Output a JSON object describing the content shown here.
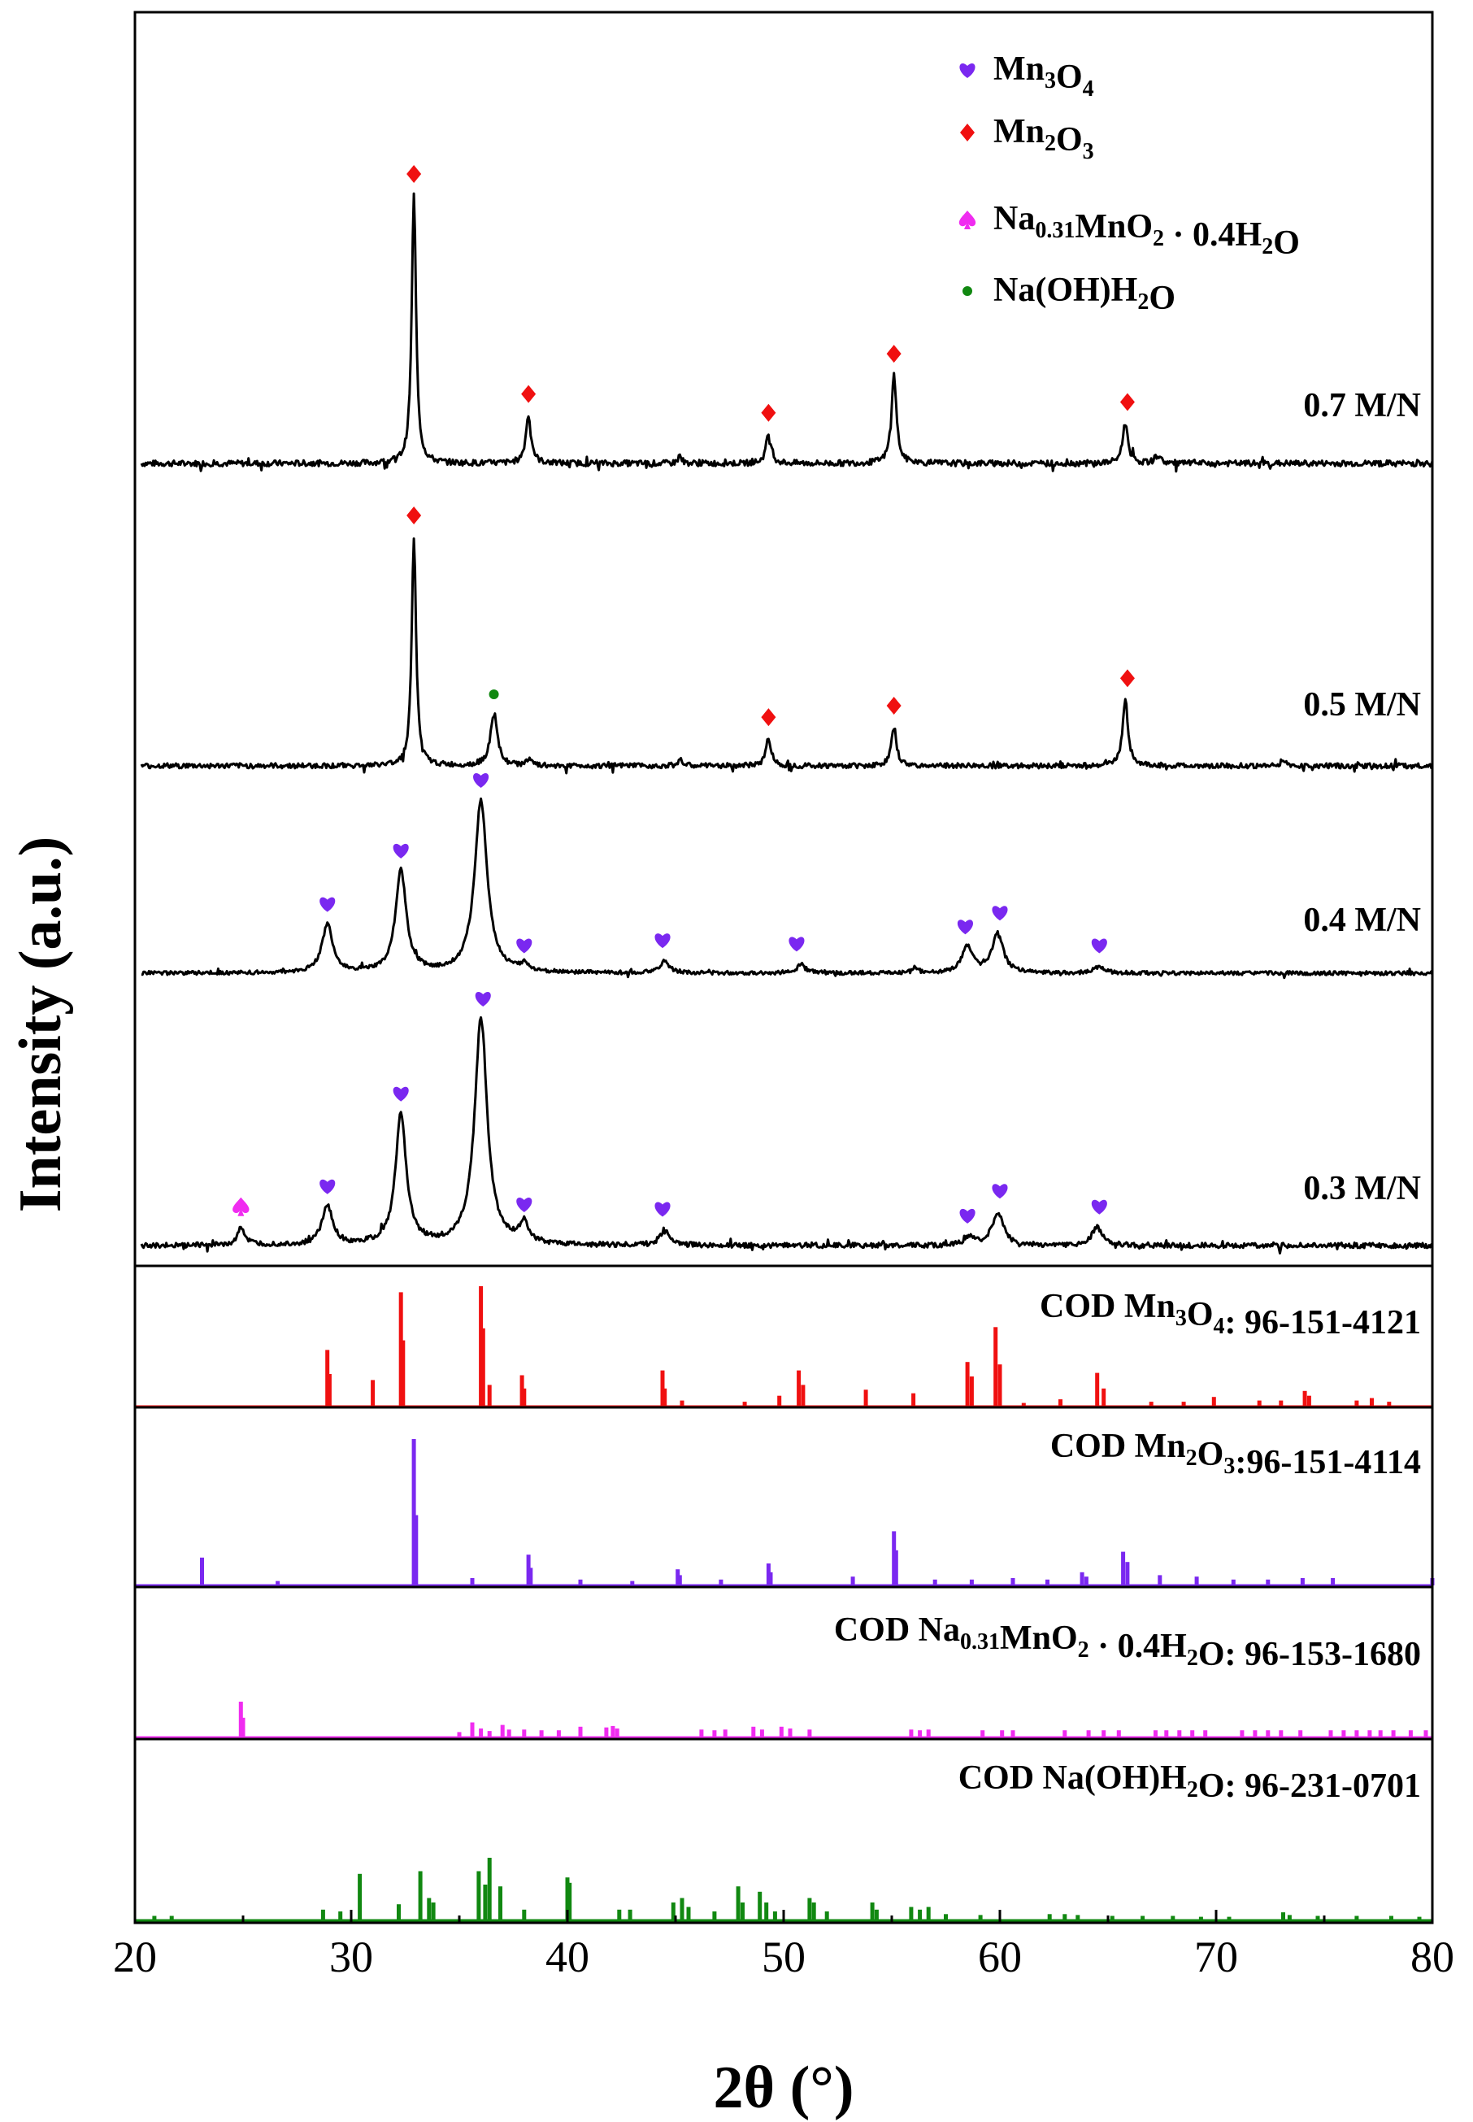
{
  "chart_data": {
    "type": "line",
    "xlabel": "2θ (°)",
    "ylabel": "Intensity (a.u.)",
    "xlim": [
      20,
      80
    ],
    "xticks": [
      20,
      30,
      40,
      50,
      60,
      70,
      80
    ],
    "legend": {
      "position": "top-right",
      "entries": [
        {
          "key": "mn3o4",
          "name": "Mn3O4",
          "marker": "heart",
          "color": "#7A28F0"
        },
        {
          "key": "mn2o3",
          "name": "Mn2O3",
          "marker": "diamond",
          "color": "#F01010"
        },
        {
          "key": "namno2",
          "name": "Na0.31MnO2 · 0.4H2O",
          "marker": "spade",
          "color": "#F02CF0"
        },
        {
          "key": "naoh",
          "name": "Na(OH)H2O",
          "marker": "dot",
          "color": "#118811"
        }
      ]
    },
    "samples": [
      {
        "label": "0.7 M/N",
        "color": "#000000",
        "peak_height": 330,
        "peaks": [
          [
            32.9,
            1.0,
            0.12
          ],
          [
            38.2,
            0.18,
            0.15
          ],
          [
            45.2,
            0.03,
            0.1
          ],
          [
            49.3,
            0.11,
            0.14
          ],
          [
            55.1,
            0.33,
            0.14
          ],
          [
            65.8,
            0.15,
            0.15
          ],
          [
            67.3,
            0.03,
            0.15
          ]
        ],
        "markers": [
          [
            "mn2o3",
            32.9
          ],
          [
            "mn2o3",
            38.2
          ],
          [
            "mn2o3",
            49.3
          ],
          [
            "mn2o3",
            55.1
          ],
          [
            "mn2o3",
            65.9
          ]
        ]
      },
      {
        "label": "0.5 M/N",
        "color": "#000000",
        "peak_height": 282,
        "peaks": [
          [
            32.9,
            1.0,
            0.12
          ],
          [
            36.6,
            0.22,
            0.2
          ],
          [
            38.2,
            0.03,
            0.12
          ],
          [
            45.2,
            0.03,
            0.12
          ],
          [
            49.3,
            0.12,
            0.15
          ],
          [
            55.1,
            0.17,
            0.14
          ],
          [
            65.8,
            0.29,
            0.15
          ],
          [
            73.1,
            0.03,
            0.12
          ]
        ],
        "markers": [
          [
            "mn2o3",
            32.9
          ],
          [
            "naoh",
            36.6
          ],
          [
            "mn2o3",
            49.3
          ],
          [
            "mn2o3",
            55.1
          ],
          [
            "mn2o3",
            65.9
          ]
        ]
      },
      {
        "label": "0.4 M/N",
        "color": "#000000",
        "peak_height": 212,
        "peaks": [
          [
            28.9,
            0.28,
            0.3
          ],
          [
            32.3,
            0.59,
            0.3
          ],
          [
            36.0,
            1.0,
            0.35
          ],
          [
            38.0,
            0.04,
            0.2
          ],
          [
            44.5,
            0.07,
            0.25
          ],
          [
            50.8,
            0.05,
            0.25
          ],
          [
            56.1,
            0.02,
            0.2
          ],
          [
            58.5,
            0.15,
            0.3
          ],
          [
            59.9,
            0.23,
            0.3
          ],
          [
            64.6,
            0.04,
            0.25
          ]
        ],
        "markers": [
          [
            "mn3o4",
            28.9
          ],
          [
            "mn3o4",
            32.3
          ],
          [
            "mn3o4",
            36.0
          ],
          [
            "mn3o4",
            38.0
          ],
          [
            "mn3o4",
            44.4
          ],
          [
            "mn3o4",
            50.6
          ],
          [
            "mn3o4",
            58.4
          ],
          [
            "mn3o4",
            60.0
          ],
          [
            "mn3o4",
            64.6
          ]
        ]
      },
      {
        "label": "0.3 M/N",
        "color": "#000000",
        "peak_height": 278,
        "peaks": [
          [
            24.9,
            0.08,
            0.2
          ],
          [
            28.9,
            0.17,
            0.3
          ],
          [
            32.3,
            0.58,
            0.3
          ],
          [
            36.0,
            1.0,
            0.35
          ],
          [
            38.0,
            0.09,
            0.25
          ],
          [
            44.5,
            0.07,
            0.25
          ],
          [
            58.6,
            0.04,
            0.25
          ],
          [
            59.9,
            0.15,
            0.3
          ],
          [
            64.5,
            0.08,
            0.3
          ]
        ],
        "markers": [
          [
            "namno2",
            24.9
          ],
          [
            "mn3o4",
            28.9
          ],
          [
            "mn3o4",
            32.3
          ],
          [
            "mn3o4",
            36.1
          ],
          [
            "mn3o4",
            38.0
          ],
          [
            "mn3o4",
            44.4
          ],
          [
            "mn3o4",
            58.5
          ],
          [
            "mn3o4",
            60.0
          ],
          [
            "mn3o4",
            64.6
          ]
        ]
      }
    ],
    "references": [
      {
        "label": "COD Mn3O4: 96-151-4121",
        "color": "#F01010",
        "sticks": [
          [
            28.9,
            0.47
          ],
          [
            29.0,
            0.27
          ],
          [
            31.0,
            0.22
          ],
          [
            32.3,
            0.95
          ],
          [
            32.4,
            0.55
          ],
          [
            36.0,
            1.0
          ],
          [
            36.1,
            0.65
          ],
          [
            36.4,
            0.18
          ],
          [
            37.9,
            0.26
          ],
          [
            38.0,
            0.15
          ],
          [
            44.4,
            0.3
          ],
          [
            44.5,
            0.15
          ],
          [
            45.3,
            0.05
          ],
          [
            48.2,
            0.04
          ],
          [
            49.8,
            0.09
          ],
          [
            50.7,
            0.3
          ],
          [
            50.9,
            0.18
          ],
          [
            53.8,
            0.14
          ],
          [
            56.0,
            0.11
          ],
          [
            58.5,
            0.37
          ],
          [
            58.7,
            0.25
          ],
          [
            59.8,
            0.66
          ],
          [
            60.0,
            0.35
          ],
          [
            61.1,
            0.03
          ],
          [
            62.8,
            0.06
          ],
          [
            64.5,
            0.28
          ],
          [
            64.8,
            0.15
          ],
          [
            67.0,
            0.04
          ],
          [
            68.5,
            0.04
          ],
          [
            69.9,
            0.08
          ],
          [
            72.0,
            0.05
          ],
          [
            73.0,
            0.05
          ],
          [
            74.1,
            0.13
          ],
          [
            74.3,
            0.09
          ],
          [
            76.5,
            0.05
          ],
          [
            77.2,
            0.07
          ],
          [
            78.0,
            0.04
          ]
        ]
      },
      {
        "label": "COD Mn2O3:96-151-4114",
        "color": "#7A28F0",
        "sticks": [
          [
            23.1,
            0.19
          ],
          [
            26.6,
            0.03
          ],
          [
            32.9,
            1.0
          ],
          [
            33.0,
            0.48
          ],
          [
            35.6,
            0.05
          ],
          [
            38.2,
            0.21
          ],
          [
            38.3,
            0.12
          ],
          [
            40.6,
            0.04
          ],
          [
            43.0,
            0.03
          ],
          [
            45.1,
            0.11
          ],
          [
            45.2,
            0.07
          ],
          [
            47.1,
            0.04
          ],
          [
            49.3,
            0.15
          ],
          [
            49.4,
            0.09
          ],
          [
            53.2,
            0.06
          ],
          [
            55.1,
            0.37
          ],
          [
            55.2,
            0.24
          ],
          [
            57.0,
            0.04
          ],
          [
            58.7,
            0.04
          ],
          [
            60.6,
            0.05
          ],
          [
            62.2,
            0.04
          ],
          [
            63.8,
            0.09
          ],
          [
            64.0,
            0.06
          ],
          [
            65.7,
            0.23
          ],
          [
            65.9,
            0.16
          ],
          [
            67.4,
            0.07
          ],
          [
            69.1,
            0.06
          ],
          [
            70.8,
            0.04
          ],
          [
            72.4,
            0.04
          ],
          [
            74.0,
            0.05
          ],
          [
            75.4,
            0.05
          ],
          [
            80.0,
            0.05
          ]
        ]
      },
      {
        "label": "COD Na0.31MnO2 · 0.4H2O: 96-153-1680",
        "color": "#F02CF0",
        "sticks": [
          [
            24.9,
            1.0
          ],
          [
            25.0,
            0.55
          ],
          [
            35.0,
            0.15
          ],
          [
            35.6,
            0.42
          ],
          [
            36.0,
            0.25
          ],
          [
            36.4,
            0.18
          ],
          [
            37.0,
            0.35
          ],
          [
            37.3,
            0.22
          ],
          [
            38.0,
            0.22
          ],
          [
            38.8,
            0.2
          ],
          [
            39.6,
            0.2
          ],
          [
            40.6,
            0.3
          ],
          [
            41.8,
            0.28
          ],
          [
            42.1,
            0.32
          ],
          [
            42.3,
            0.25
          ],
          [
            46.2,
            0.22
          ],
          [
            46.8,
            0.2
          ],
          [
            47.3,
            0.22
          ],
          [
            48.6,
            0.3
          ],
          [
            49.0,
            0.22
          ],
          [
            49.9,
            0.3
          ],
          [
            50.3,
            0.25
          ],
          [
            51.2,
            0.22
          ],
          [
            55.9,
            0.22
          ],
          [
            56.3,
            0.2
          ],
          [
            56.7,
            0.22
          ],
          [
            59.2,
            0.2
          ],
          [
            60.1,
            0.2
          ],
          [
            60.6,
            0.2
          ],
          [
            63.0,
            0.2
          ],
          [
            64.1,
            0.2
          ],
          [
            64.8,
            0.2
          ],
          [
            65.5,
            0.2
          ],
          [
            67.2,
            0.2
          ],
          [
            67.7,
            0.2
          ],
          [
            68.3,
            0.2
          ],
          [
            68.9,
            0.2
          ],
          [
            69.5,
            0.2
          ],
          [
            71.2,
            0.2
          ],
          [
            71.8,
            0.2
          ],
          [
            72.4,
            0.2
          ],
          [
            73.0,
            0.2
          ],
          [
            73.9,
            0.2
          ],
          [
            75.3,
            0.2
          ],
          [
            75.9,
            0.2
          ],
          [
            76.5,
            0.2
          ],
          [
            77.1,
            0.2
          ],
          [
            77.6,
            0.2
          ],
          [
            78.2,
            0.2
          ],
          [
            79.0,
            0.2
          ],
          [
            79.7,
            0.2
          ]
        ]
      },
      {
        "label": "COD Na(OH)H2O: 96-231-0701",
        "color": "#118811",
        "sticks": [
          [
            20.9,
            0.05
          ],
          [
            21.7,
            0.05
          ],
          [
            28.7,
            0.12
          ],
          [
            29.5,
            0.1
          ],
          [
            30.4,
            0.52
          ],
          [
            32.2,
            0.18
          ],
          [
            33.2,
            0.55
          ],
          [
            33.6,
            0.25
          ],
          [
            33.8,
            0.2
          ],
          [
            35.9,
            0.55
          ],
          [
            36.2,
            0.4
          ],
          [
            36.4,
            0.7
          ],
          [
            36.9,
            0.38
          ],
          [
            38.0,
            0.12
          ],
          [
            40.0,
            0.48
          ],
          [
            40.1,
            0.42
          ],
          [
            42.4,
            0.12
          ],
          [
            42.9,
            0.12
          ],
          [
            44.9,
            0.2
          ],
          [
            45.3,
            0.25
          ],
          [
            45.6,
            0.15
          ],
          [
            46.8,
            0.1
          ],
          [
            47.9,
            0.38
          ],
          [
            48.1,
            0.2
          ],
          [
            48.9,
            0.32
          ],
          [
            49.2,
            0.2
          ],
          [
            49.6,
            0.1
          ],
          [
            51.2,
            0.25
          ],
          [
            51.4,
            0.2
          ],
          [
            52.0,
            0.1
          ],
          [
            54.1,
            0.2
          ],
          [
            54.3,
            0.12
          ],
          [
            55.9,
            0.15
          ],
          [
            56.3,
            0.12
          ],
          [
            56.7,
            0.15
          ],
          [
            57.5,
            0.07
          ],
          [
            59.1,
            0.06
          ],
          [
            62.3,
            0.07
          ],
          [
            63.0,
            0.07
          ],
          [
            63.6,
            0.06
          ],
          [
            65.2,
            0.05
          ],
          [
            66.6,
            0.05
          ],
          [
            68.0,
            0.05
          ],
          [
            69.3,
            0.04
          ],
          [
            70.6,
            0.04
          ],
          [
            73.1,
            0.09
          ],
          [
            73.4,
            0.06
          ],
          [
            74.7,
            0.05
          ],
          [
            76.5,
            0.05
          ],
          [
            78.1,
            0.05
          ],
          [
            79.4,
            0.04
          ]
        ]
      }
    ]
  }
}
